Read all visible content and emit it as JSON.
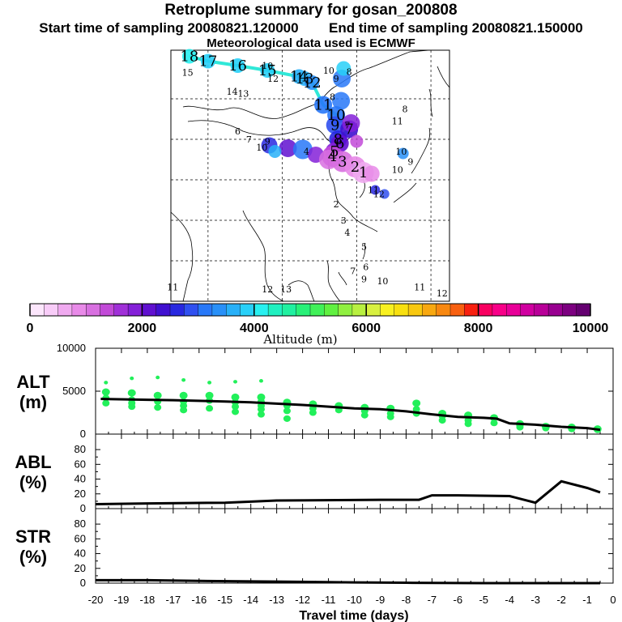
{
  "header": {
    "title": "Retroplume summary for gosan_200808",
    "start_label": "Start time of sampling 20080821.120000",
    "end_label": "End time of sampling 20080821.150000",
    "met_label": "Meteorological data used is ECMWF"
  },
  "map": {
    "trajectory_labels": [
      {
        "text": "18",
        "lon": 75.0,
        "lat": 60.5
      },
      {
        "text": "17",
        "lon": 80.0,
        "lat": 59.3
      },
      {
        "text": "16",
        "lon": 88.0,
        "lat": 58.2
      },
      {
        "text": "15",
        "lon": 96.0,
        "lat": 57.0
      },
      {
        "text": "14",
        "lon": 104.5,
        "lat": 55.5
      },
      {
        "text": "13",
        "lon": 106.0,
        "lat": 55.0
      },
      {
        "text": "12",
        "lon": 108.0,
        "lat": 54.0
      },
      {
        "text": "11",
        "lon": 111.0,
        "lat": 48.5
      },
      {
        "text": "10",
        "lon": 114.5,
        "lat": 46.0
      },
      {
        "text": "9",
        "lon": 114.2,
        "lat": 43.5
      },
      {
        "text": "8",
        "lon": 115.0,
        "lat": 40.0
      },
      {
        "text": "7",
        "lon": 118.0,
        "lat": 42.5
      },
      {
        "text": "6",
        "lon": 115.5,
        "lat": 39.0
      },
      {
        "text": "5",
        "lon": 114.0,
        "lat": 37.0
      },
      {
        "text": "4",
        "lon": 113.5,
        "lat": 35.8
      },
      {
        "text": "3",
        "lon": 116.2,
        "lat": 34.5
      },
      {
        "text": "2",
        "lon": 119.6,
        "lat": 33.2
      },
      {
        "text": "1",
        "lon": 121.8,
        "lat": 31.8
      }
    ],
    "layer_labels": [
      {
        "text": "15",
        "lon": 74.5,
        "lat": 56.5
      },
      {
        "text": "14",
        "lon": 86.5,
        "lat": 51.8
      },
      {
        "text": "13",
        "lon": 89.5,
        "lat": 51.3
      },
      {
        "text": "12",
        "lon": 97.5,
        "lat": 55.0
      },
      {
        "text": "10",
        "lon": 96.0,
        "lat": 58.2
      },
      {
        "text": "10",
        "lon": 112.5,
        "lat": 57.0
      },
      {
        "text": "9",
        "lon": 114.5,
        "lat": 55.0
      },
      {
        "text": "8",
        "lon": 118.0,
        "lat": 56.7
      },
      {
        "text": "8",
        "lon": 113.5,
        "lat": 50.5
      },
      {
        "text": "7",
        "lon": 117.5,
        "lat": 43.5
      },
      {
        "text": "6",
        "lon": 88.0,
        "lat": 42.0
      },
      {
        "text": "7",
        "lon": 91.0,
        "lat": 40.0
      },
      {
        "text": "10",
        "lon": 94.5,
        "lat": 38.0
      },
      {
        "text": "9",
        "lon": 96.0,
        "lat": 39.5
      },
      {
        "text": "4",
        "lon": 106.5,
        "lat": 37.0
      },
      {
        "text": "10",
        "lon": 132.0,
        "lat": 37.0
      },
      {
        "text": "9",
        "lon": 134.5,
        "lat": 34.5
      },
      {
        "text": "10",
        "lon": 131.0,
        "lat": 32.5
      },
      {
        "text": "11",
        "lon": 124.5,
        "lat": 27.5
      },
      {
        "text": "12",
        "lon": 126.0,
        "lat": 26.5
      },
      {
        "text": "11",
        "lon": 70.5,
        "lat": 3.5
      },
      {
        "text": "12",
        "lon": 96.0,
        "lat": 3.0
      },
      {
        "text": "13",
        "lon": 101.0,
        "lat": 3.0
      },
      {
        "text": "2",
        "lon": 114.5,
        "lat": 24.0
      },
      {
        "text": "3",
        "lon": 116.5,
        "lat": 20.0
      },
      {
        "text": "4",
        "lon": 117.5,
        "lat": 17.0
      },
      {
        "text": "5",
        "lon": 122.0,
        "lat": 13.5
      },
      {
        "text": "6",
        "lon": 122.5,
        "lat": 8.5
      },
      {
        "text": "7",
        "lon": 119.0,
        "lat": 7.5
      },
      {
        "text": "9",
        "lon": 122.0,
        "lat": 5.5
      },
      {
        "text": "10",
        "lon": 127.0,
        "lat": 5.0
      },
      {
        "text": "11",
        "lon": 137.0,
        "lat": 3.5
      },
      {
        "text": "12",
        "lon": 143.0,
        "lat": 2.0
      },
      {
        "text": "8",
        "lon": 133.0,
        "lat": 47.5
      },
      {
        "text": "11",
        "lon": 131.0,
        "lat": 44.5
      }
    ]
  },
  "colorbar": {
    "ticks": [
      "0",
      "2000",
      "4000",
      "6000",
      "8000",
      "10000"
    ],
    "label": "Altitude (m)",
    "colors": [
      "#fce6fc",
      "#f8ccf8",
      "#f0aaf0",
      "#e88ae8",
      "#d870e0",
      "#c24ad8",
      "#a030d8",
      "#8420d8",
      "#6010d0",
      "#4010d0",
      "#2828e0",
      "#3050f0",
      "#2878f8",
      "#2890f8",
      "#28b0f8",
      "#28d0f8",
      "#28f0f0",
      "#20f0c0",
      "#20f0a0",
      "#28f078",
      "#40f058",
      "#60f040",
      "#90f040",
      "#b8f040",
      "#d8f040",
      "#f8f020",
      "#f8e010",
      "#f8c810",
      "#f8a810",
      "#f88810",
      "#f86010",
      "#f82010",
      "#f80060",
      "#f80088",
      "#e80098",
      "#d000a0",
      "#b80098",
      "#980090",
      "#7c0080",
      "#640070"
    ]
  },
  "chart_data": [
    {
      "type": "scatter+line",
      "ylabel": "ALT\n(m)",
      "ylim": [
        0,
        10000
      ],
      "yticks": [
        "10000",
        "5000",
        "0"
      ],
      "median_line": {
        "x": [
          -19.8,
          -18,
          -17,
          -15,
          -14,
          -13,
          -12,
          -11,
          -10,
          -9,
          -8,
          -7,
          -6,
          -5,
          -4.5,
          -4,
          -3,
          -2,
          -1,
          -0.5
        ],
        "y": [
          4100,
          4000,
          3950,
          3800,
          3700,
          3550,
          3400,
          3200,
          3000,
          2900,
          2650,
          2300,
          2000,
          1900,
          1800,
          1250,
          1100,
          850,
          700,
          500
        ]
      },
      "clusters": [
        {
          "x": -19.6,
          "y": [
            4900,
            4200,
            3600,
            6000
          ]
        },
        {
          "x": -18.6,
          "y": [
            4800,
            4000,
            3600,
            3200,
            6500
          ]
        },
        {
          "x": -17.6,
          "y": [
            4500,
            3800,
            3100,
            6600
          ]
        },
        {
          "x": -16.6,
          "y": [
            4500,
            3800,
            3300,
            2800,
            6300
          ]
        },
        {
          "x": -15.6,
          "y": [
            4500,
            3900,
            3000,
            6000
          ]
        },
        {
          "x": -14.6,
          "y": [
            4300,
            3700,
            3200,
            2600,
            6100
          ]
        },
        {
          "x": -13.6,
          "y": [
            4300,
            3800,
            3300,
            2900,
            2300,
            6200
          ]
        },
        {
          "x": -12.6,
          "y": [
            3700,
            3300,
            2700,
            1800
          ]
        },
        {
          "x": -11.6,
          "y": [
            3500,
            3000,
            2500
          ]
        },
        {
          "x": -10.6,
          "y": [
            3300,
            2800
          ]
        },
        {
          "x": -9.6,
          "y": [
            3100,
            2700,
            2200
          ]
        },
        {
          "x": -8.6,
          "y": [
            3000,
            2400,
            2000
          ]
        },
        {
          "x": -7.6,
          "y": [
            3600,
            2900,
            2400
          ]
        },
        {
          "x": -6.6,
          "y": [
            2400,
            2100,
            1600
          ]
        },
        {
          "x": -5.6,
          "y": [
            2200,
            1600,
            1200
          ]
        },
        {
          "x": -4.6,
          "y": [
            1900,
            1300
          ]
        },
        {
          "x": -3.6,
          "y": [
            1200,
            1000,
            800
          ]
        },
        {
          "x": -2.6,
          "y": [
            900,
            700
          ]
        },
        {
          "x": -1.6,
          "y": [
            800,
            600
          ]
        },
        {
          "x": -0.6,
          "y": [
            600,
            500
          ]
        }
      ]
    },
    {
      "type": "line",
      "ylabel": "ABL\n(%)",
      "ylim": [
        0,
        90
      ],
      "yticks": [
        "80",
        "60",
        "40",
        "20",
        "0"
      ],
      "x": [
        -20,
        -18,
        -15,
        -13,
        -9,
        -7.5,
        -7,
        -6,
        -4,
        -3,
        -2,
        -1,
        -0.5
      ],
      "y": [
        6,
        7,
        8,
        11,
        12,
        12,
        18,
        18,
        17,
        8,
        37,
        28,
        22
      ]
    },
    {
      "type": "line",
      "ylabel": "STR\n(%)",
      "ylim": [
        0,
        90
      ],
      "yticks": [
        "80",
        "60",
        "40",
        "20",
        "0"
      ],
      "x": [
        -20,
        -18,
        -16,
        -13,
        -10,
        -8,
        -5,
        -0.5
      ],
      "y": [
        4,
        4,
        3,
        2,
        1,
        0.5,
        0,
        0
      ]
    }
  ],
  "xaxis": {
    "ticks": [
      "-20",
      "-19",
      "-18",
      "-17",
      "-16",
      "-15",
      "-14",
      "-13",
      "-12",
      "-11",
      "-10",
      "-9",
      "-8",
      "-7",
      "-6",
      "-5",
      "-4",
      "-3",
      "-2",
      "-1",
      "0"
    ],
    "label": "Travel time (days)",
    "xlim": [
      -20,
      0
    ]
  },
  "colors": {
    "trajectory": "#30e8d8",
    "scatter": "#22f05a",
    "line": "#000000"
  }
}
